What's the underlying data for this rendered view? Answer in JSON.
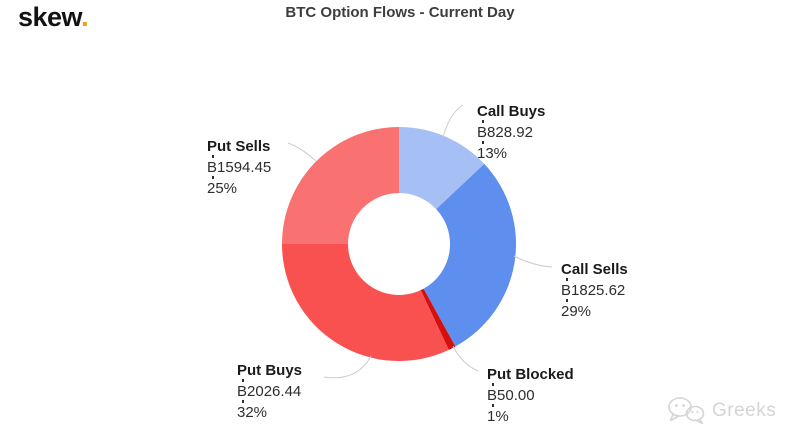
{
  "logo": {
    "text": "skew",
    "dot": "."
  },
  "title": "BTC Option Flows - Current Day",
  "watermark": {
    "text": "Greeks",
    "icon": "wechat-icon"
  },
  "colors": {
    "background": "#ffffff",
    "title_text": "#3d3d3d",
    "label_text": "#2e2e2e",
    "connector": "#cccccc",
    "logo_dot": "#f2a20d",
    "watermark": "#d5d5d5"
  },
  "chart_data": {
    "type": "pie",
    "style": "donut",
    "title": "BTC Option Flows - Current Day",
    "unit": "₿",
    "start_angle_deg": 0,
    "direction": "clockwise-from-top",
    "legend": "none",
    "label_placement": "outside-with-connectors",
    "segments": [
      {
        "id": "call_buys",
        "label": "Call Buys",
        "value": 828.92,
        "value_display": "₿828.92",
        "pct": 13,
        "pct_display": "13%",
        "color": "#a6c0f6"
      },
      {
        "id": "call_sells",
        "label": "Call Sells",
        "value": 1825.62,
        "value_display": "₿1825.62",
        "pct": 29,
        "pct_display": "29%",
        "color": "#5e8fee"
      },
      {
        "id": "put_blocked",
        "label": "Put Blocked",
        "value": 50.0,
        "value_display": "₿50.00",
        "pct": 1,
        "pct_display": "1%",
        "color": "#d40f0e"
      },
      {
        "id": "put_buys",
        "label": "Put Buys",
        "value": 2026.44,
        "value_display": "₿2026.44",
        "pct": 32,
        "pct_display": "32%",
        "color": "#f8514f"
      },
      {
        "id": "put_sells",
        "label": "Put Sells",
        "value": 1594.45,
        "value_display": "₿1594.45",
        "pct": 25,
        "pct_display": "25%",
        "color": "#f97170"
      }
    ]
  }
}
